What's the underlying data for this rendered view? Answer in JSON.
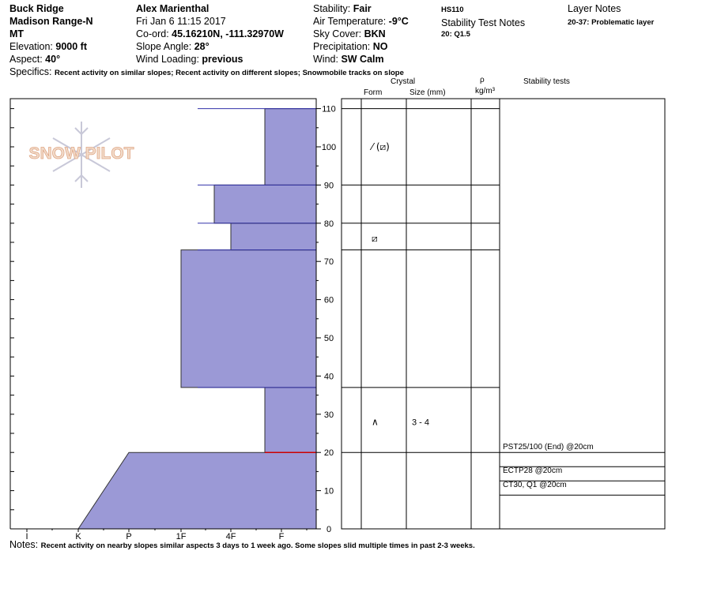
{
  "header": {
    "location": "Buck Ridge",
    "range": "Madison Range-N",
    "state": "MT",
    "elevation_label": "Elevation:",
    "elevation_value": "9000 ft",
    "aspect_label": "Aspect:",
    "aspect_value": "40°",
    "observer": "Alex Marienthal",
    "datetime": "Fri Jan 6 11:15 2017",
    "coord_label": "Co-ord:",
    "coord_value": "45.16210N, -111.32970W",
    "slope_label": "Slope Angle:",
    "slope_value": "28°",
    "wind_loading_label": "Wind Loading:",
    "wind_loading_value": "previous",
    "stability_label": "Stability:",
    "stability_value": "Fair",
    "air_temp_label": "Air Temperature:",
    "air_temp_value": "-9°C",
    "sky_label": "Sky Cover:",
    "sky_value": "BKN",
    "precip_label": "Precipitation:",
    "precip_value": "NO",
    "wind_label": "Wind:",
    "wind_value": "SW Calm",
    "hs": "HS110",
    "stability_notes_title": "Stability Test Notes",
    "stability_notes_value": "20: Q1.5",
    "layer_notes_title": "Layer Notes",
    "layer_notes_value": "20-37: Problematic layer"
  },
  "specifics_label": "Specifics:",
  "specifics_value": "Recent activity on similar slopes; Recent activity on different slopes; Snowmobile tracks on slope",
  "notes_label": "Notes:",
  "notes_value": "Recent activity on nearby slopes similar aspects 3 days to 1 week ago. Some slopes slid multiple times in past 2-3 weeks.",
  "logo_text": "SNOW PILOT",
  "columns": {
    "crystal": "Crystal",
    "form": "Form",
    "size": "Size (mm)",
    "rho": "ρ",
    "density_unit": "kg/m³",
    "stability_tests": "Stability tests"
  },
  "colors": {
    "layer_fill": "#9b99d6",
    "layer_stroke": "#3333aa",
    "weak_layer_line": "#cc0000",
    "logo": "#e8c2a6",
    "snowflake": "#c8c8d8"
  },
  "chart_data": {
    "type": "area",
    "description_axis": "hardness profile",
    "ylim": [
      0,
      115
    ],
    "yticks": [
      0,
      10,
      20,
      30,
      40,
      50,
      60,
      70,
      80,
      90,
      100,
      110
    ],
    "hardness_scale": [
      "I",
      "K",
      "P",
      "1F",
      "4F",
      "F"
    ],
    "layers": [
      {
        "bottom": 0,
        "top": 20,
        "hardness_bottom": "K",
        "hardness_top": "P"
      },
      {
        "bottom": 20,
        "top": 37,
        "hardness": "F+"
      },
      {
        "bottom": 37,
        "top": 73,
        "hardness": "1F"
      },
      {
        "bottom": 73,
        "top": 80,
        "hardness": "4F"
      },
      {
        "bottom": 80,
        "top": 90,
        "hardness": "1F+"
      },
      {
        "bottom": 90,
        "top": 110,
        "hardness": "F+"
      }
    ],
    "boundaries": [
      20,
      37,
      73,
      80,
      90,
      110
    ],
    "crystals": [
      {
        "height": 100,
        "form": "⁄ (⧄)"
      },
      {
        "height": 76,
        "form": "⧄"
      },
      {
        "height": 28,
        "form": "∧",
        "size": "3 - 4"
      }
    ],
    "stability_tests": [
      {
        "label": "PST25/100 (End) @20cm"
      },
      {
        "label": "ECTP28 @20cm"
      },
      {
        "label": "CT30, Q1 @20cm"
      }
    ],
    "weak_layer_height": 20
  }
}
